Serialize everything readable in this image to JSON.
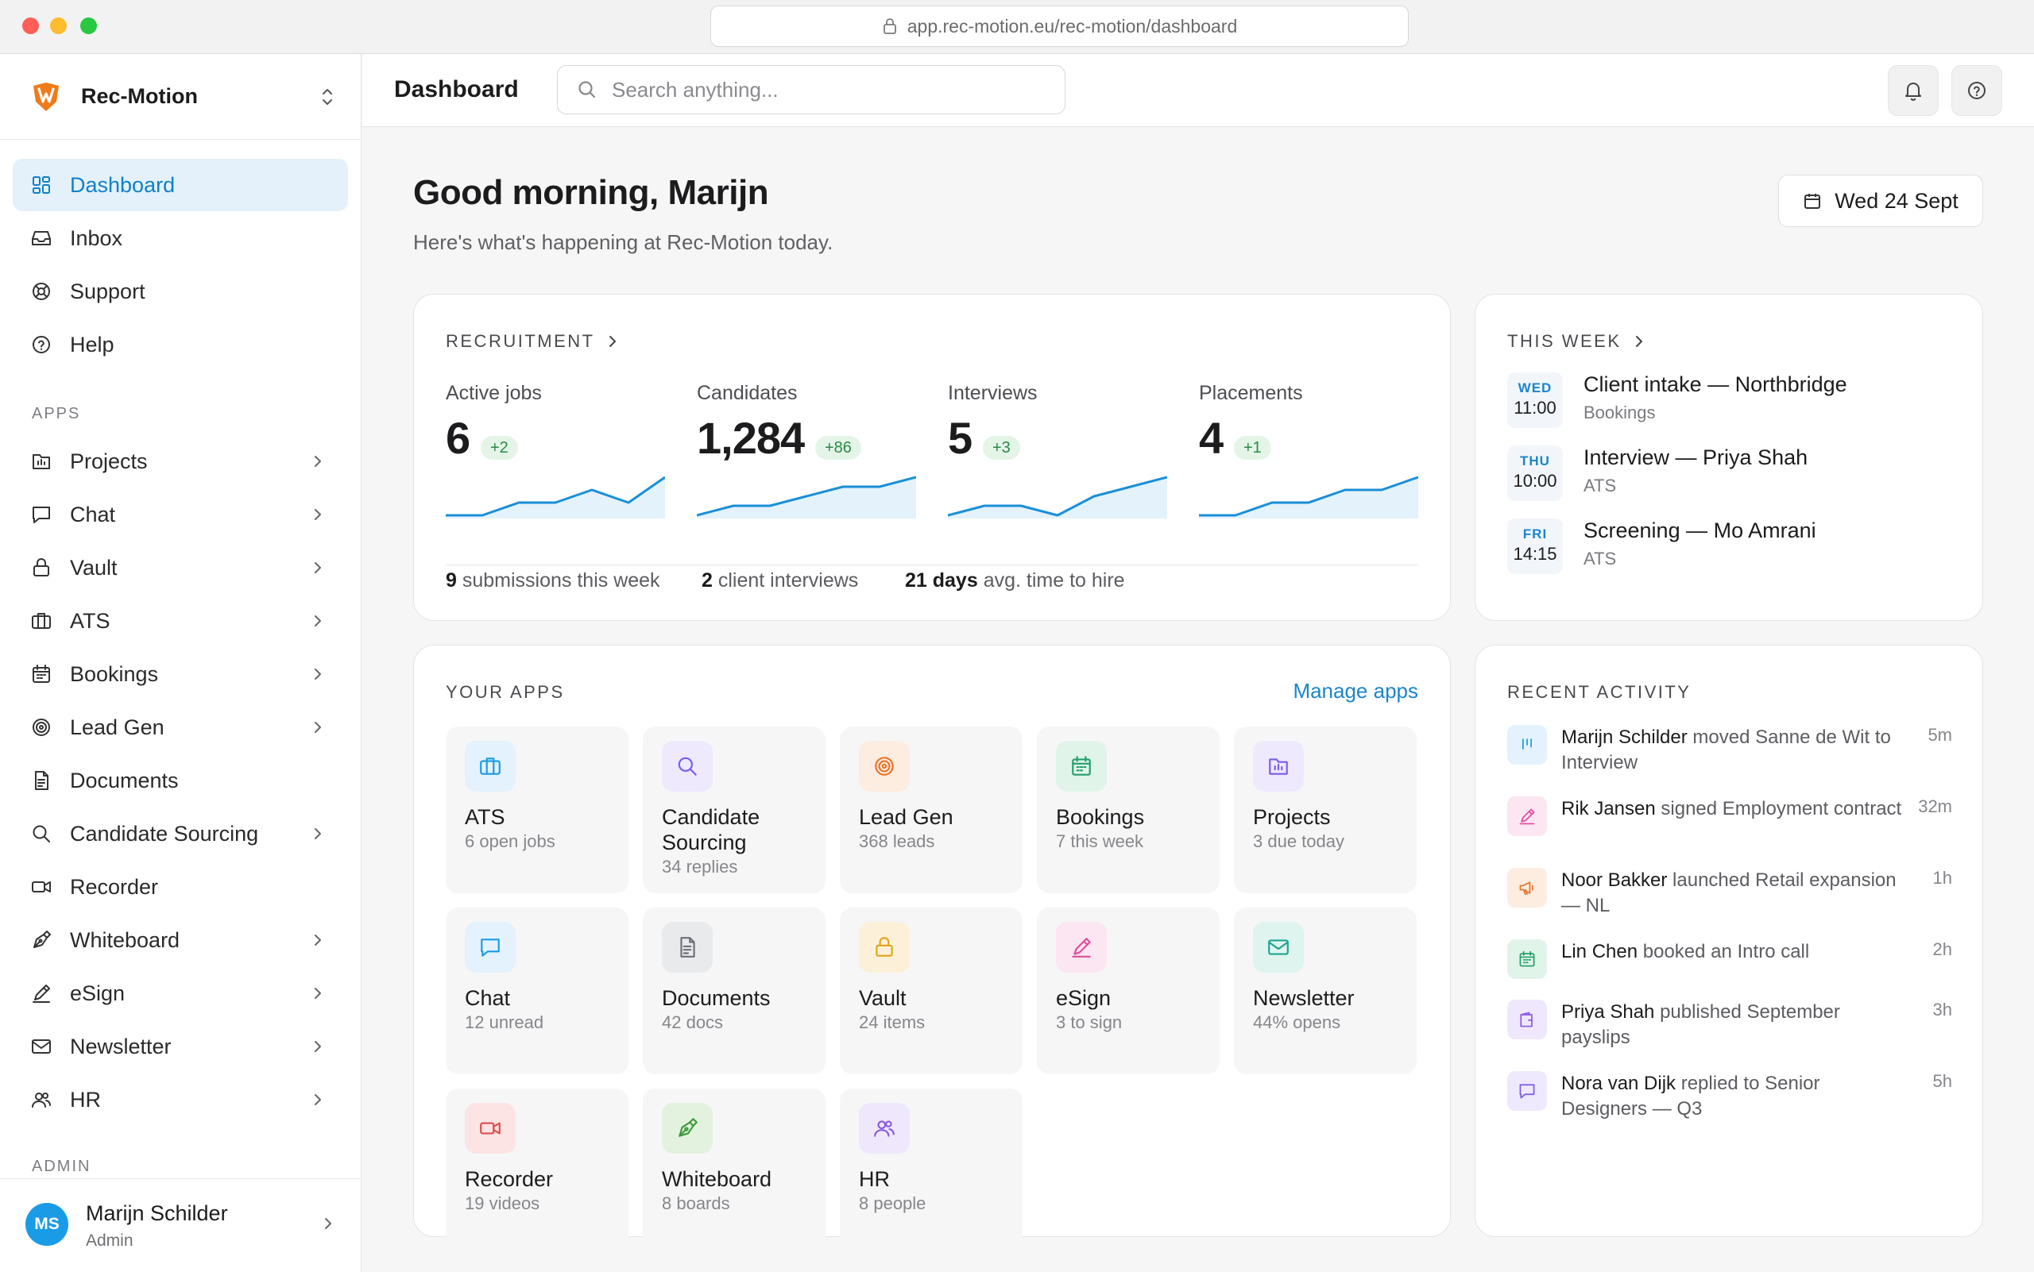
{
  "browser": {
    "url": "app.rec-motion.eu/rec-motion/dashboard"
  },
  "brand": {
    "name": "Rec-Motion"
  },
  "nav": [
    {
      "label": "Dashboard",
      "icon": "dashboard-icon",
      "active": true
    },
    {
      "label": "Inbox",
      "icon": "inbox-icon"
    },
    {
      "label": "Support",
      "icon": "lifebuoy-icon"
    },
    {
      "label": "Help",
      "icon": "help-circle-icon"
    }
  ],
  "apps_section": "APPS",
  "apps_nav": [
    {
      "label": "Projects",
      "icon": "projects-icon",
      "chevron": true
    },
    {
      "label": "Chat",
      "icon": "chat-icon",
      "chevron": true
    },
    {
      "label": "Vault",
      "icon": "lock-icon",
      "chevron": true
    },
    {
      "label": "ATS",
      "icon": "briefcase-icon",
      "chevron": true
    },
    {
      "label": "Bookings",
      "icon": "calendar-icon",
      "chevron": true
    },
    {
      "label": "Lead Gen",
      "icon": "target-icon",
      "chevron": true
    },
    {
      "label": "Documents",
      "icon": "document-icon",
      "chevron": false
    },
    {
      "label": "Candidate Sourcing",
      "icon": "search-icon",
      "chevron": true
    },
    {
      "label": "Recorder",
      "icon": "video-icon",
      "chevron": false
    },
    {
      "label": "Whiteboard",
      "icon": "pen-tool-icon",
      "chevron": true
    },
    {
      "label": "eSign",
      "icon": "signature-icon",
      "chevron": true
    },
    {
      "label": "Newsletter",
      "icon": "mail-icon",
      "chevron": true
    },
    {
      "label": "HR",
      "icon": "users-icon",
      "chevron": true
    }
  ],
  "admin_section": "ADMIN",
  "user": {
    "initials": "MS",
    "name": "Marijn Schilder",
    "role": "Admin"
  },
  "topbar": {
    "title": "Dashboard",
    "search_placeholder": "Search anything..."
  },
  "greeting": {
    "title": "Good morning, Marijn",
    "subtitle": "Here's what's happening at Rec-Motion today.",
    "date": "Wed 24 Sept"
  },
  "recruitment": {
    "title": "RECRUITMENT",
    "metrics": [
      {
        "label": "Active jobs",
        "value": "6",
        "delta": "+2",
        "trend": [
          2,
          2,
          3,
          3,
          4,
          3,
          5
        ]
      },
      {
        "label": "Candidates",
        "value": "1,284",
        "delta": "+86",
        "trend": [
          2,
          3,
          3,
          4,
          5,
          5,
          6
        ]
      },
      {
        "label": "Interviews",
        "value": "5",
        "delta": "+3",
        "trend": [
          2,
          3,
          3,
          2,
          4,
          5,
          6
        ]
      },
      {
        "label": "Placements",
        "value": "4",
        "delta": "+1",
        "trend": [
          2,
          2,
          3,
          3,
          4,
          4,
          5
        ]
      }
    ],
    "footer": [
      {
        "bold": "9",
        "text": " submissions this week"
      },
      {
        "bold": "2",
        "text": " client interviews"
      },
      {
        "bold": "21 days",
        "text": " avg. time to hire"
      }
    ]
  },
  "week": {
    "title": "THIS WEEK",
    "events": [
      {
        "day": "WED",
        "time": "11:00",
        "title": "Client intake — Northbridge",
        "sub": "Bookings"
      },
      {
        "day": "THU",
        "time": "10:00",
        "title": "Interview — Priya Shah",
        "sub": "ATS"
      },
      {
        "day": "FRI",
        "time": "14:15",
        "title": "Screening — Mo Amrani",
        "sub": "ATS"
      }
    ]
  },
  "apps": {
    "title": "YOUR APPS",
    "manage": "Manage apps",
    "tiles": [
      {
        "name": "ATS",
        "sub": "6 open jobs",
        "icon": "briefcase-icon",
        "color": "#1a9be6",
        "bg": "#e3f2fc"
      },
      {
        "name": "Candidate Sourcing",
        "sub": "34 replies",
        "icon": "search-icon",
        "color": "#7a5af0",
        "bg": "#eee9fd"
      },
      {
        "name": "Lead Gen",
        "sub": "368 leads",
        "icon": "target-icon",
        "color": "#e8742a",
        "bg": "#fdece0"
      },
      {
        "name": "Bookings",
        "sub": "7 this week",
        "icon": "calendar-icon",
        "color": "#23a06b",
        "bg": "#e1f4ea"
      },
      {
        "name": "Projects",
        "sub": "3 due today",
        "icon": "projects-icon",
        "color": "#7a5af0",
        "bg": "#eee9fd"
      },
      {
        "name": "Chat",
        "sub": "12 unread",
        "icon": "chat-icon",
        "color": "#1a9be6",
        "bg": "#e3f2fc"
      },
      {
        "name": "Documents",
        "sub": "42 docs",
        "icon": "document-icon",
        "color": "#6b6f7a",
        "bg": "#e9eaec"
      },
      {
        "name": "Vault",
        "sub": "24 items",
        "icon": "lock-icon",
        "color": "#e3a21a",
        "bg": "#fcf1d8"
      },
      {
        "name": "eSign",
        "sub": "3 to sign",
        "icon": "signature-icon",
        "color": "#e04c9c",
        "bg": "#fbe6f1"
      },
      {
        "name": "Newsletter",
        "sub": "44% opens",
        "icon": "mail-icon",
        "color": "#1fa38f",
        "bg": "#dff4ef"
      },
      {
        "name": "Recorder",
        "sub": "19 videos",
        "icon": "video-icon",
        "color": "#e24b4b",
        "bg": "#fde4e4"
      },
      {
        "name": "Whiteboard",
        "sub": "8 boards",
        "icon": "pen-tool-icon",
        "color": "#3c9a3a",
        "bg": "#e3f2df"
      },
      {
        "name": "HR",
        "sub": "8 people",
        "icon": "users-icon",
        "color": "#8a5ae6",
        "bg": "#efe8fc"
      }
    ]
  },
  "activity": {
    "title": "RECENT ACTIVITY",
    "items": [
      {
        "who": "Marijn Schilder",
        "text": " moved Sanne de Wit to Interview",
        "time": "5m",
        "icon": "kanban-icon",
        "color": "#1a9be6",
        "bg": "#e3f2fc"
      },
      {
        "who": "Rik Jansen",
        "text": " signed Employment contract",
        "time": "32m",
        "icon": "signature-icon",
        "color": "#e04c9c",
        "bg": "#fbe6f1"
      },
      {
        "who": "Noor Bakker",
        "text": " launched Retail expansion — NL",
        "time": "1h",
        "icon": "megaphone-icon",
        "color": "#e8742a",
        "bg": "#fdece0"
      },
      {
        "who": "Lin Chen",
        "text": " booked an Intro call",
        "time": "2h",
        "icon": "calendar-icon",
        "color": "#23a06b",
        "bg": "#e1f4ea"
      },
      {
        "who": "Priya Shah",
        "text": " published September payslips",
        "time": "3h",
        "icon": "wallet-icon",
        "color": "#8a5ae6",
        "bg": "#efe8fc"
      },
      {
        "who": "Nora van Dijk",
        "text": " replied to Senior Designers — Q3",
        "time": "5h",
        "icon": "chat-icon",
        "color": "#7a5af0",
        "bg": "#eee9fd"
      }
    ]
  }
}
